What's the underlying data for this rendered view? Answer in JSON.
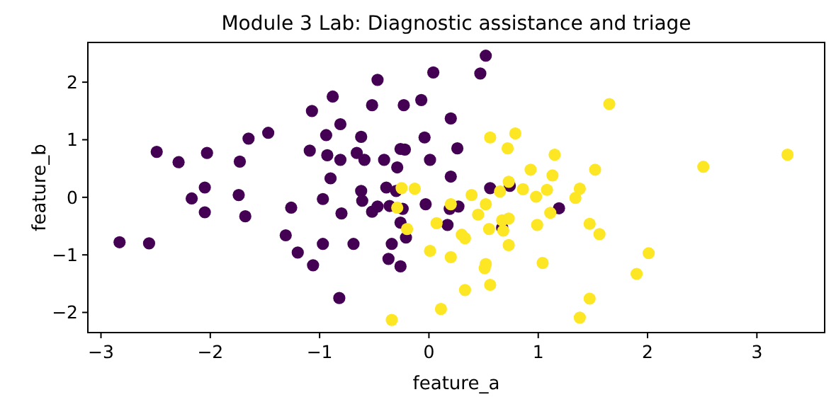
{
  "chart_data": {
    "type": "scatter",
    "title": "Module 3 Lab: Diagnostic assistance and triage",
    "xlabel": "feature_a",
    "ylabel": "feature_b",
    "xlim": [
      -3.12,
      3.62
    ],
    "ylim": [
      -2.35,
      2.69
    ],
    "xticks": [
      -3,
      -2,
      -1,
      0,
      1,
      2,
      3
    ],
    "yticks": [
      -2,
      -1,
      0,
      1,
      2
    ],
    "marker": "circle",
    "series": [
      {
        "color": "#440154",
        "x": [
          -2.83,
          -2.56,
          -2.49,
          -2.29,
          -2.03,
          -2.17,
          -2.05,
          -2.05,
          -1.73,
          -1.65,
          -1.47,
          -1.74,
          -1.68,
          0.52,
          0.04,
          0.47,
          -0.47,
          -0.88,
          -1.07,
          -0.52,
          -0.23,
          -0.07,
          0.2,
          -0.81,
          -0.94,
          -0.62,
          -1.09,
          -0.93,
          -0.81,
          -0.66,
          -0.59,
          -0.26,
          -0.22,
          -0.04,
          0.26,
          -0.41,
          -0.29,
          0.01,
          -0.9,
          -0.62,
          -0.39,
          -0.3,
          0.2,
          0.56,
          0.74,
          -0.97,
          -0.61,
          -1.26,
          -0.8,
          -0.52,
          -0.47,
          -0.36,
          -0.24,
          -0.03,
          0.19,
          0.27,
          1.19,
          -0.26,
          0.17,
          -0.21,
          -1.31,
          -1.2,
          -0.97,
          -1.06,
          -0.69,
          -0.34,
          -0.37,
          -0.26,
          -0.82,
          0.67
        ],
        "values": [
          -0.78,
          -0.8,
          0.79,
          0.61,
          0.77,
          -0.02,
          0.17,
          -0.26,
          0.62,
          1.02,
          1.12,
          0.04,
          -0.33,
          2.46,
          2.17,
          2.15,
          2.04,
          1.75,
          1.5,
          1.6,
          1.6,
          1.69,
          1.37,
          1.27,
          1.08,
          1.05,
          0.81,
          0.73,
          0.65,
          0.77,
          0.65,
          0.84,
          0.83,
          1.04,
          0.85,
          0.65,
          0.52,
          0.65,
          0.33,
          0.11,
          0.17,
          0.11,
          0.36,
          0.16,
          0.2,
          -0.03,
          -0.06,
          -0.18,
          -0.28,
          -0.25,
          -0.16,
          -0.15,
          -0.2,
          -0.12,
          -0.2,
          -0.16,
          -0.19,
          -0.44,
          -0.48,
          -0.7,
          -0.66,
          -0.96,
          -0.81,
          -1.18,
          -0.81,
          -0.81,
          -1.07,
          -1.2,
          -1.75,
          -0.53
        ]
      },
      {
        "color": "#fde725",
        "x": [
          0.56,
          0.79,
          0.72,
          1.15,
          0.93,
          1.13,
          -0.25,
          -0.13,
          0.39,
          0.65,
          0.73,
          0.86,
          0.98,
          1.08,
          0.52,
          0.2,
          -0.29,
          0.45,
          1.11,
          0.67,
          0.73,
          0.07,
          0.55,
          0.68,
          0.99,
          -0.2,
          0.3,
          0.33,
          0.73,
          0.01,
          0.2,
          0.52,
          0.51,
          1.04,
          0.56,
          0.33,
          0.11,
          -0.34,
          1.65,
          1.52,
          2.51,
          3.28,
          1.38,
          1.34,
          1.47,
          1.56,
          2.01,
          1.9,
          1.47,
          1.38
        ],
        "values": [
          1.04,
          1.11,
          0.85,
          0.74,
          0.48,
          0.38,
          0.16,
          0.15,
          0.04,
          0.1,
          0.27,
          0.14,
          0.01,
          0.13,
          -0.12,
          -0.12,
          -0.18,
          -0.3,
          -0.27,
          -0.4,
          -0.37,
          -0.45,
          -0.55,
          -0.58,
          -0.48,
          -0.55,
          -0.65,
          -0.71,
          -0.83,
          -0.93,
          -1.04,
          -1.16,
          -1.23,
          -1.14,
          -1.52,
          -1.61,
          -1.94,
          -2.13,
          1.62,
          0.48,
          0.53,
          0.74,
          0.15,
          -0.01,
          -0.46,
          -0.64,
          -0.97,
          -1.33,
          -1.76,
          -2.09
        ]
      }
    ]
  }
}
